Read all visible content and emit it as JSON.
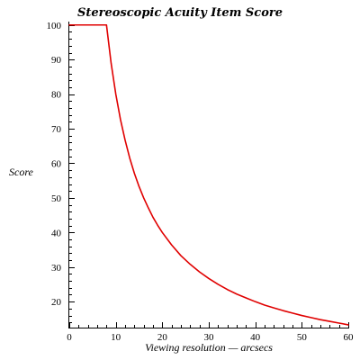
{
  "chart_data": {
    "type": "line",
    "title": "Stereoscopic Acuity Item Score",
    "xlabel": "Viewing resolution — arcsecs",
    "ylabel": "Score",
    "xlim": [
      0,
      60
    ],
    "ylim": [
      12.5,
      101.5
    ],
    "grid": false,
    "x_ticks": [
      0,
      10,
      20,
      30,
      40,
      50,
      60
    ],
    "y_ticks": [
      20,
      30,
      40,
      50,
      60,
      70,
      80,
      90,
      100
    ],
    "x_tick_labels": [
      "0",
      "10",
      "20",
      "30",
      "40",
      "50",
      "60"
    ],
    "y_tick_labels": [
      "20",
      "30",
      "40",
      "50",
      "60",
      "70",
      "80",
      "90",
      "100"
    ],
    "series": [
      {
        "color": "#e00000",
        "x": [
          0,
          2,
          4,
          6,
          8,
          9,
          10,
          11,
          12,
          13,
          14,
          15,
          16,
          17,
          18,
          19,
          20,
          22,
          24,
          26,
          28,
          30,
          32,
          34,
          36,
          38,
          40,
          42,
          44,
          46,
          48,
          50,
          52,
          54,
          56,
          58,
          60
        ],
        "y": [
          100,
          100,
          100,
          100,
          100,
          88.9,
          80,
          72.7,
          66.7,
          61.5,
          57.1,
          53.3,
          50,
          47.1,
          44.4,
          42.1,
          40,
          36.4,
          33.3,
          30.8,
          28.6,
          26.7,
          25,
          23.5,
          22.2,
          21.1,
          20,
          19,
          18.2,
          17.4,
          16.7,
          16,
          15.4,
          14.8,
          14.3,
          13.8,
          13.3
        ]
      }
    ]
  }
}
